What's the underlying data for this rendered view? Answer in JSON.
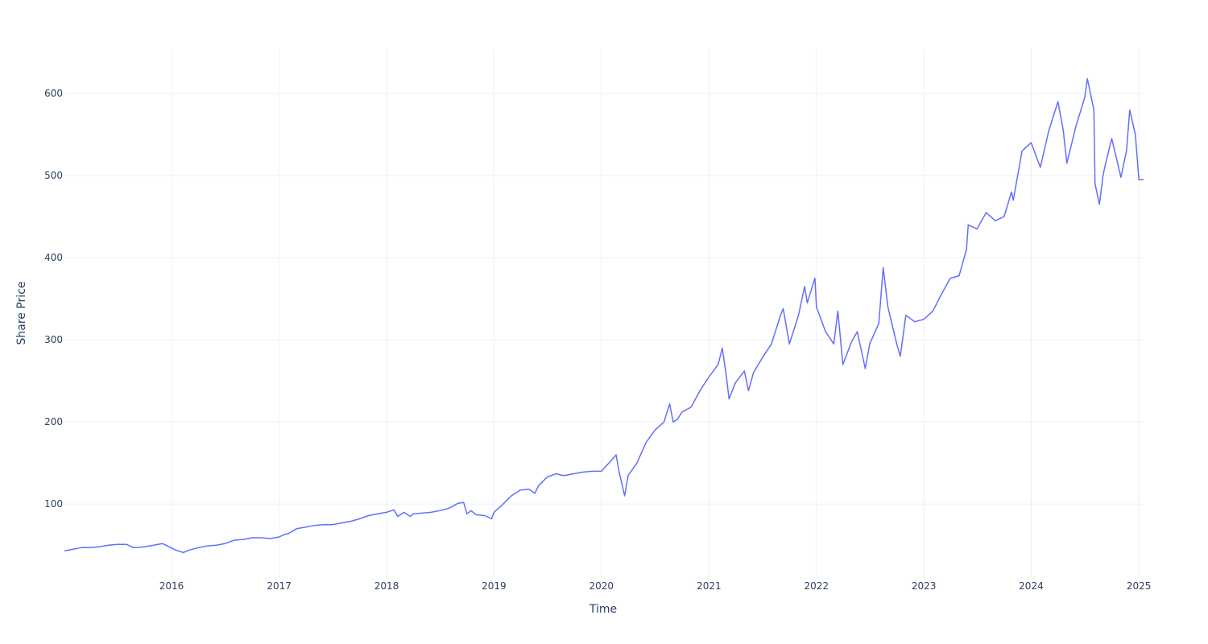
{
  "chart_data": {
    "type": "line",
    "title": "",
    "xlabel": "Time",
    "ylabel": "Share Price",
    "xlim": [
      "2015-01-02",
      "2025-01-17"
    ],
    "ylim": [
      10,
      655
    ],
    "grid": true,
    "legend": "none",
    "x_ticks": [
      "2016",
      "2017",
      "2018",
      "2019",
      "2020",
      "2021",
      "2022",
      "2023",
      "2024",
      "2025"
    ],
    "y_ticks": [
      100,
      200,
      300,
      400,
      500,
      600
    ],
    "colors": {
      "line": "#636efa",
      "grid": "#ebf0f8",
      "text": "#2a3f5f",
      "background": "#ffffff"
    },
    "series": [
      {
        "x": [
          "2015-01-02",
          "2015-02-01",
          "2015-03-01",
          "2015-04-01",
          "2015-05-01",
          "2015-06-01",
          "2015-07-01",
          "2015-08-01",
          "2015-08-25",
          "2015-09-01",
          "2015-10-01",
          "2015-11-01",
          "2015-12-01",
          "2016-01-15",
          "2016-02-10",
          "2016-03-01",
          "2016-04-01",
          "2016-05-01",
          "2016-06-01",
          "2016-07-01",
          "2016-08-01",
          "2016-09-01",
          "2016-10-01",
          "2016-11-01",
          "2016-12-01",
          "2017-01-01",
          "2017-01-20",
          "2017-02-01",
          "2017-03-01",
          "2017-04-01",
          "2017-05-01",
          "2017-06-01",
          "2017-07-01",
          "2017-08-01",
          "2017-09-01",
          "2017-10-01",
          "2017-11-01",
          "2017-12-01",
          "2018-01-01",
          "2018-01-26",
          "2018-02-08",
          "2018-03-01",
          "2018-03-23",
          "2018-04-01",
          "2018-05-01",
          "2018-06-01",
          "2018-07-01",
          "2018-08-01",
          "2018-09-01",
          "2018-09-20",
          "2018-10-01",
          "2018-10-15",
          "2018-11-01",
          "2018-12-01",
          "2018-12-24",
          "2019-01-01",
          "2019-02-01",
          "2019-03-01",
          "2019-04-01",
          "2019-05-01",
          "2019-05-20",
          "2019-06-01",
          "2019-07-01",
          "2019-08-01",
          "2019-08-20",
          "2019-09-01",
          "2019-10-01",
          "2019-11-01",
          "2019-12-01",
          "2020-01-01",
          "2020-02-01",
          "2020-02-20",
          "2020-03-01",
          "2020-03-20",
          "2020-04-01",
          "2020-05-01",
          "2020-06-01",
          "2020-07-01",
          "2020-08-01",
          "2020-08-20",
          "2020-09-01",
          "2020-09-15",
          "2020-10-01",
          "2020-11-01",
          "2020-12-01",
          "2021-01-01",
          "2021-02-01",
          "2021-02-15",
          "2021-03-01",
          "2021-03-10",
          "2021-04-01",
          "2021-05-01",
          "2021-05-15",
          "2021-06-01",
          "2021-07-01",
          "2021-08-01",
          "2021-09-01",
          "2021-09-10",
          "2021-10-01",
          "2021-11-01",
          "2021-11-22",
          "2021-12-01",
          "2021-12-27",
          "2022-01-01",
          "2022-02-01",
          "2022-03-01",
          "2022-03-15",
          "2022-04-01",
          "2022-05-01",
          "2022-05-20",
          "2022-06-01",
          "2022-06-16",
          "2022-07-01",
          "2022-08-01",
          "2022-08-16",
          "2022-09-01",
          "2022-10-01",
          "2022-10-13",
          "2022-11-01",
          "2022-12-01",
          "2023-01-01",
          "2023-02-01",
          "2023-03-01",
          "2023-04-01",
          "2023-05-01",
          "2023-05-26",
          "2023-06-01",
          "2023-07-01",
          "2023-08-01",
          "2023-09-01",
          "2023-10-01",
          "2023-10-26",
          "2023-11-01",
          "2023-12-01",
          "2024-01-01",
          "2024-02-01",
          "2024-03-01",
          "2024-04-01",
          "2024-04-19",
          "2024-05-01",
          "2024-06-01",
          "2024-07-01",
          "2024-07-10",
          "2024-08-01",
          "2024-08-05",
          "2024-08-20",
          "2024-09-01",
          "2024-09-10",
          "2024-10-01",
          "2024-11-01",
          "2024-11-20",
          "2024-12-01",
          "2024-12-20",
          "2025-01-01",
          "2025-01-17"
        ],
        "y": [
          43,
          45,
          47,
          47,
          48,
          50,
          51,
          51,
          47,
          47,
          48,
          50,
          52,
          44,
          41,
          44,
          47,
          49,
          50,
          52,
          56,
          57,
          59,
          59,
          58,
          60,
          63,
          64,
          70,
          72,
          74,
          75,
          75,
          77,
          79,
          82,
          86,
          88,
          90,
          93,
          85,
          90,
          85,
          88,
          89,
          90,
          92,
          95,
          101,
          102,
          88,
          92,
          87,
          86,
          82,
          90,
          100,
          110,
          117,
          118,
          113,
          122,
          133,
          137,
          135,
          135,
          137,
          139,
          140,
          140,
          152,
          160,
          140,
          110,
          135,
          150,
          175,
          190,
          200,
          222,
          200,
          203,
          212,
          218,
          238,
          255,
          270,
          290,
          255,
          228,
          248,
          262,
          238,
          260,
          278,
          295,
          330,
          338,
          295,
          330,
          365,
          345,
          375,
          340,
          310,
          295,
          335,
          270,
          298,
          310,
          290,
          265,
          295,
          320,
          388,
          340,
          295,
          280,
          330,
          322,
          325,
          335,
          355,
          375,
          378,
          410,
          440,
          435,
          455,
          445,
          450,
          480,
          470,
          530,
          540,
          510,
          555,
          590,
          555,
          515,
          560,
          595,
          618,
          580,
          490,
          465,
          500,
          515,
          545,
          498,
          530,
          580,
          550,
          495,
          495
        ]
      }
    ]
  }
}
